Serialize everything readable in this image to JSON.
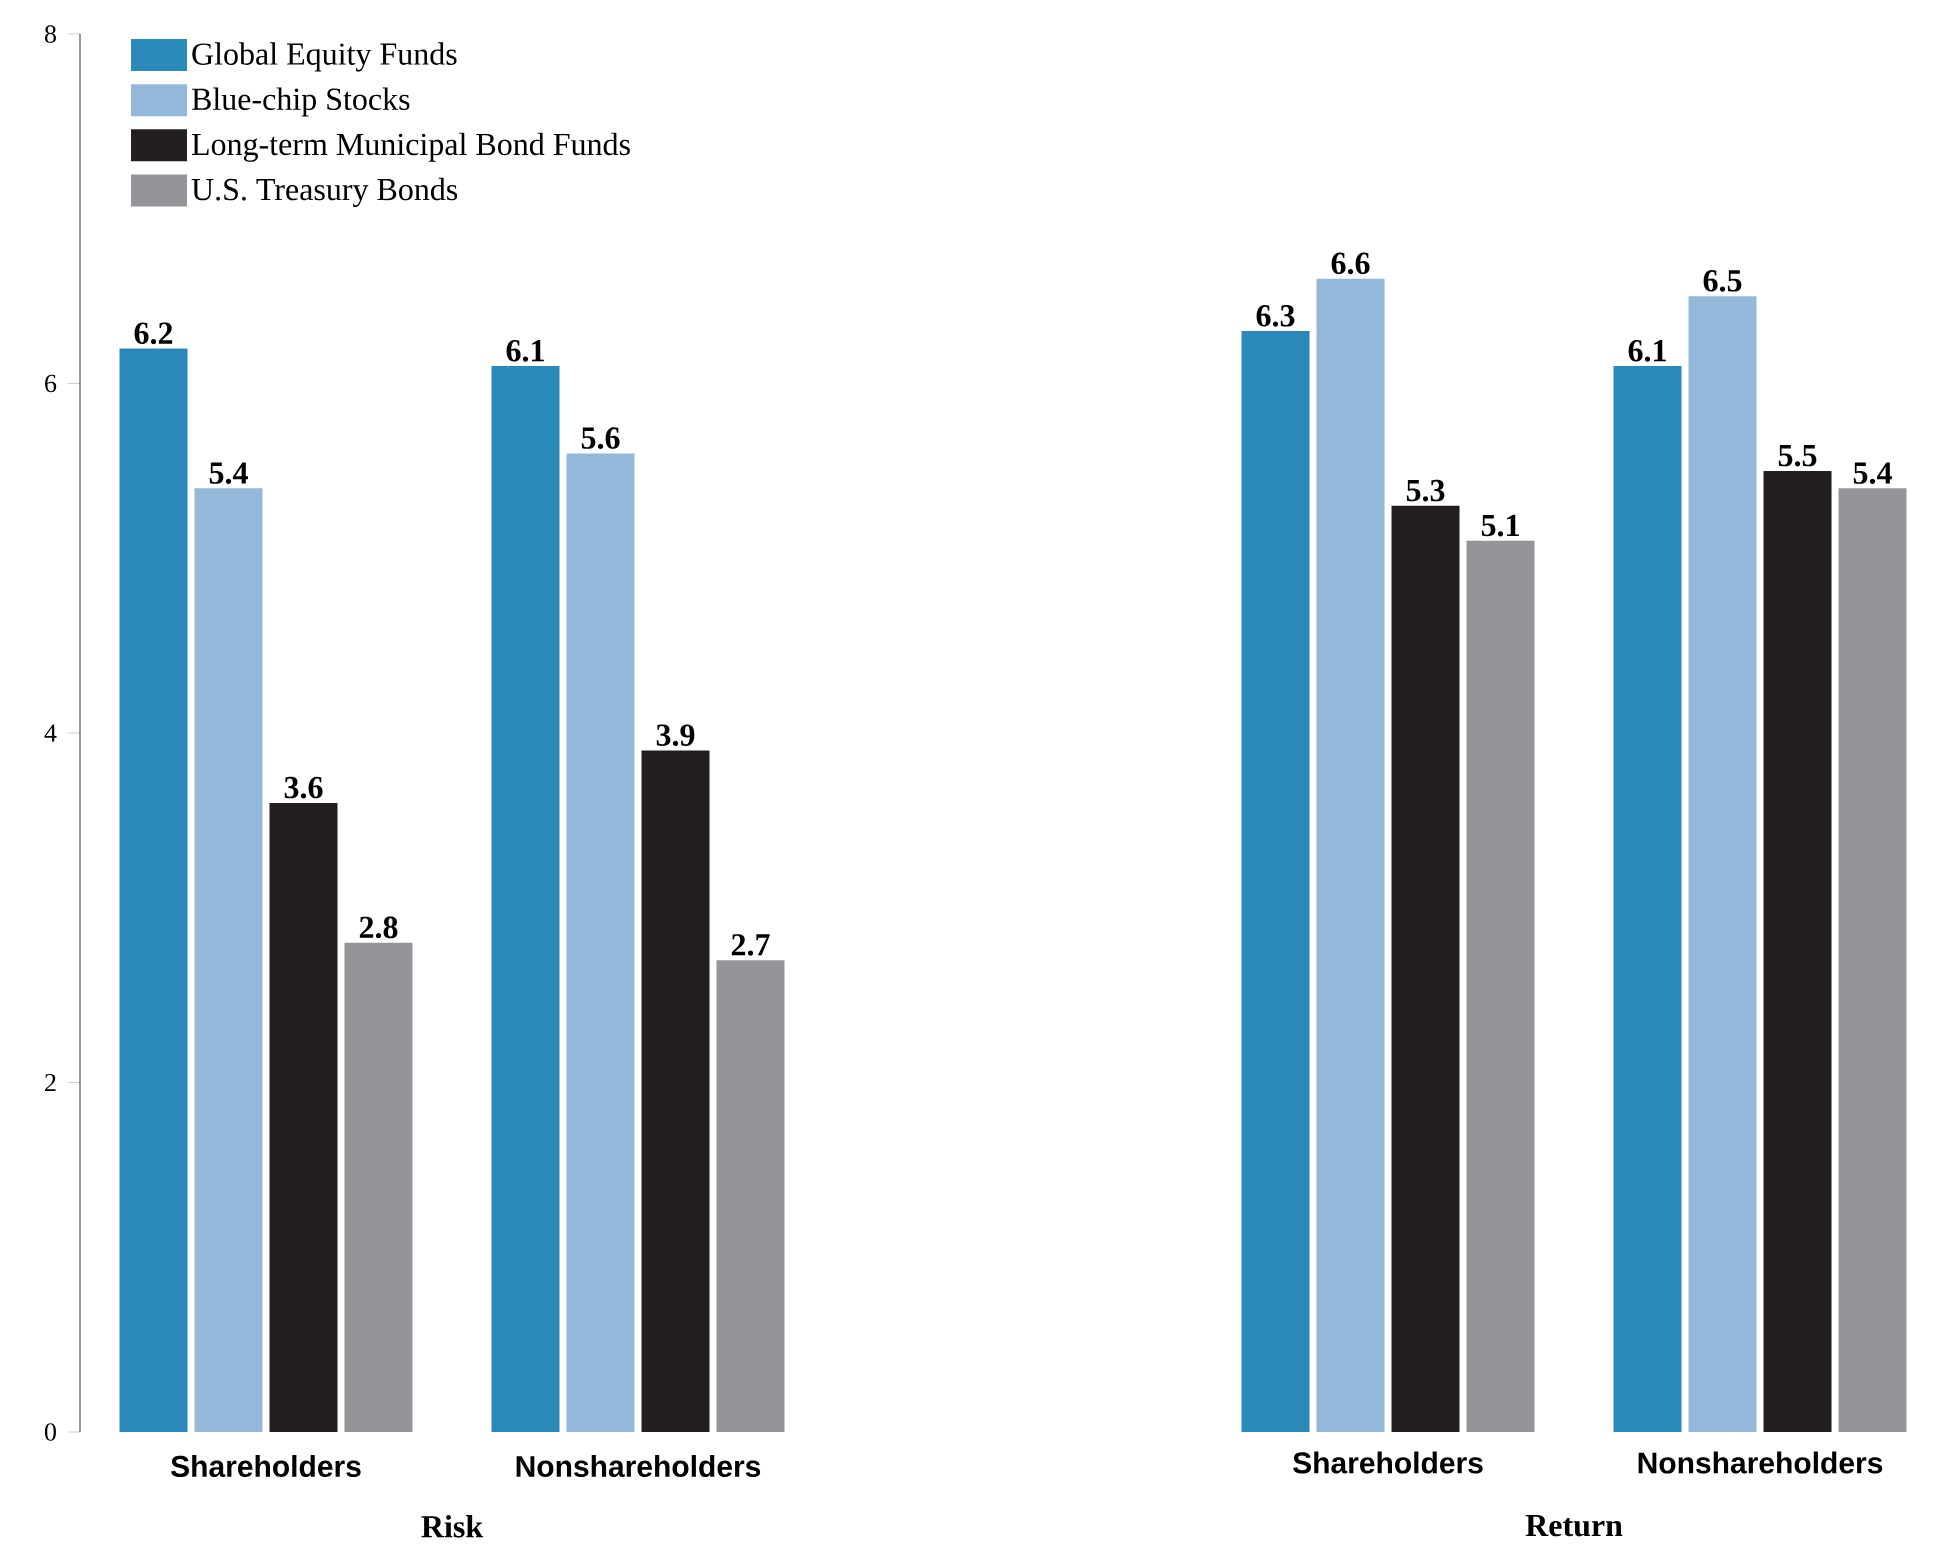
{
  "chart_data": [
    {
      "type": "bar",
      "xlabel": "Risk",
      "categories": [
        "Shareholders",
        "Nonshareholders"
      ],
      "series": [
        {
          "name": "Global Equity Funds",
          "color": "#2b89b9",
          "values": [
            6.2,
            6.1
          ]
        },
        {
          "name": "Blue-chip Stocks",
          "color": "#93b8d9",
          "values": [
            5.4,
            5.6
          ]
        },
        {
          "name": "Long-term Municipal Bond Funds",
          "color": "#231f20",
          "values": [
            3.6,
            3.9
          ]
        },
        {
          "name": "U.S. Treasury Bonds",
          "color": "#939598",
          "values": [
            2.8,
            2.7
          ]
        }
      ],
      "ylim": [
        0,
        8
      ],
      "yticks": [
        0,
        2,
        4,
        6,
        8
      ],
      "data_labels": true,
      "legend": "top left"
    },
    {
      "type": "bar",
      "xlabel": "Return",
      "categories": [
        "Shareholders",
        "Nonshareholders"
      ],
      "series": [
        {
          "color": "#2b89b9",
          "values": [
            6.3,
            6.1
          ]
        },
        {
          "color": "#93b8d9",
          "values": [
            6.6,
            6.5
          ]
        },
        {
          "color": "#231f20",
          "values": [
            5.3,
            5.5
          ]
        },
        {
          "color": "#939598",
          "values": [
            5.1,
            5.4
          ]
        }
      ],
      "ylim": [
        0,
        8
      ],
      "yticks": [
        0,
        2,
        4,
        6,
        8
      ],
      "data_labels": true,
      "tick_labels": "x"
    }
  ]
}
